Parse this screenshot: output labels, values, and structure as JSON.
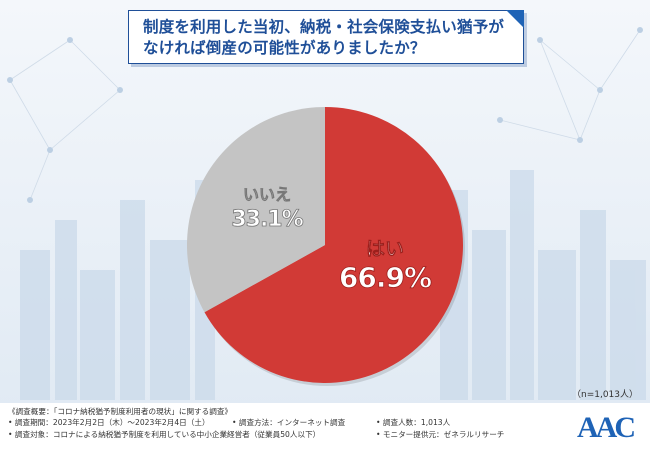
{
  "title": {
    "line1": "制度を利用した当初、納税・社会保険支払い猶予が",
    "line2": "なければ倒産の可能性がありましたか？"
  },
  "sample_size": "（n=1,013人）",
  "footer": {
    "overview": "《調査概要：「コロナ納税猶予制度利用者の現状」に関する調査》",
    "period": "• 調査期間：2023年2月2日（木）～2023年2月4日（土）",
    "method": "• 調査方法：インターネット調査",
    "count": "• 調査人数：1,013人",
    "target": "• 調査対象：コロナによる納税猶予制度を利用している中小企業経営者（従業員50人以下）",
    "provider": "• モニター提供元：ゼネラルリサーチ"
  },
  "logo_text": "AAC",
  "colors": {
    "yes": "#d13a36",
    "no": "#c4c4c4",
    "title": "#1f4f98",
    "logo": "#1f63b6"
  },
  "chart_data": {
    "type": "pie",
    "slices": [
      {
        "label": "はい",
        "value": 66.9,
        "display": "66.9%"
      },
      {
        "label": "いいえ",
        "value": 33.1,
        "display": "33.1%"
      }
    ]
  }
}
